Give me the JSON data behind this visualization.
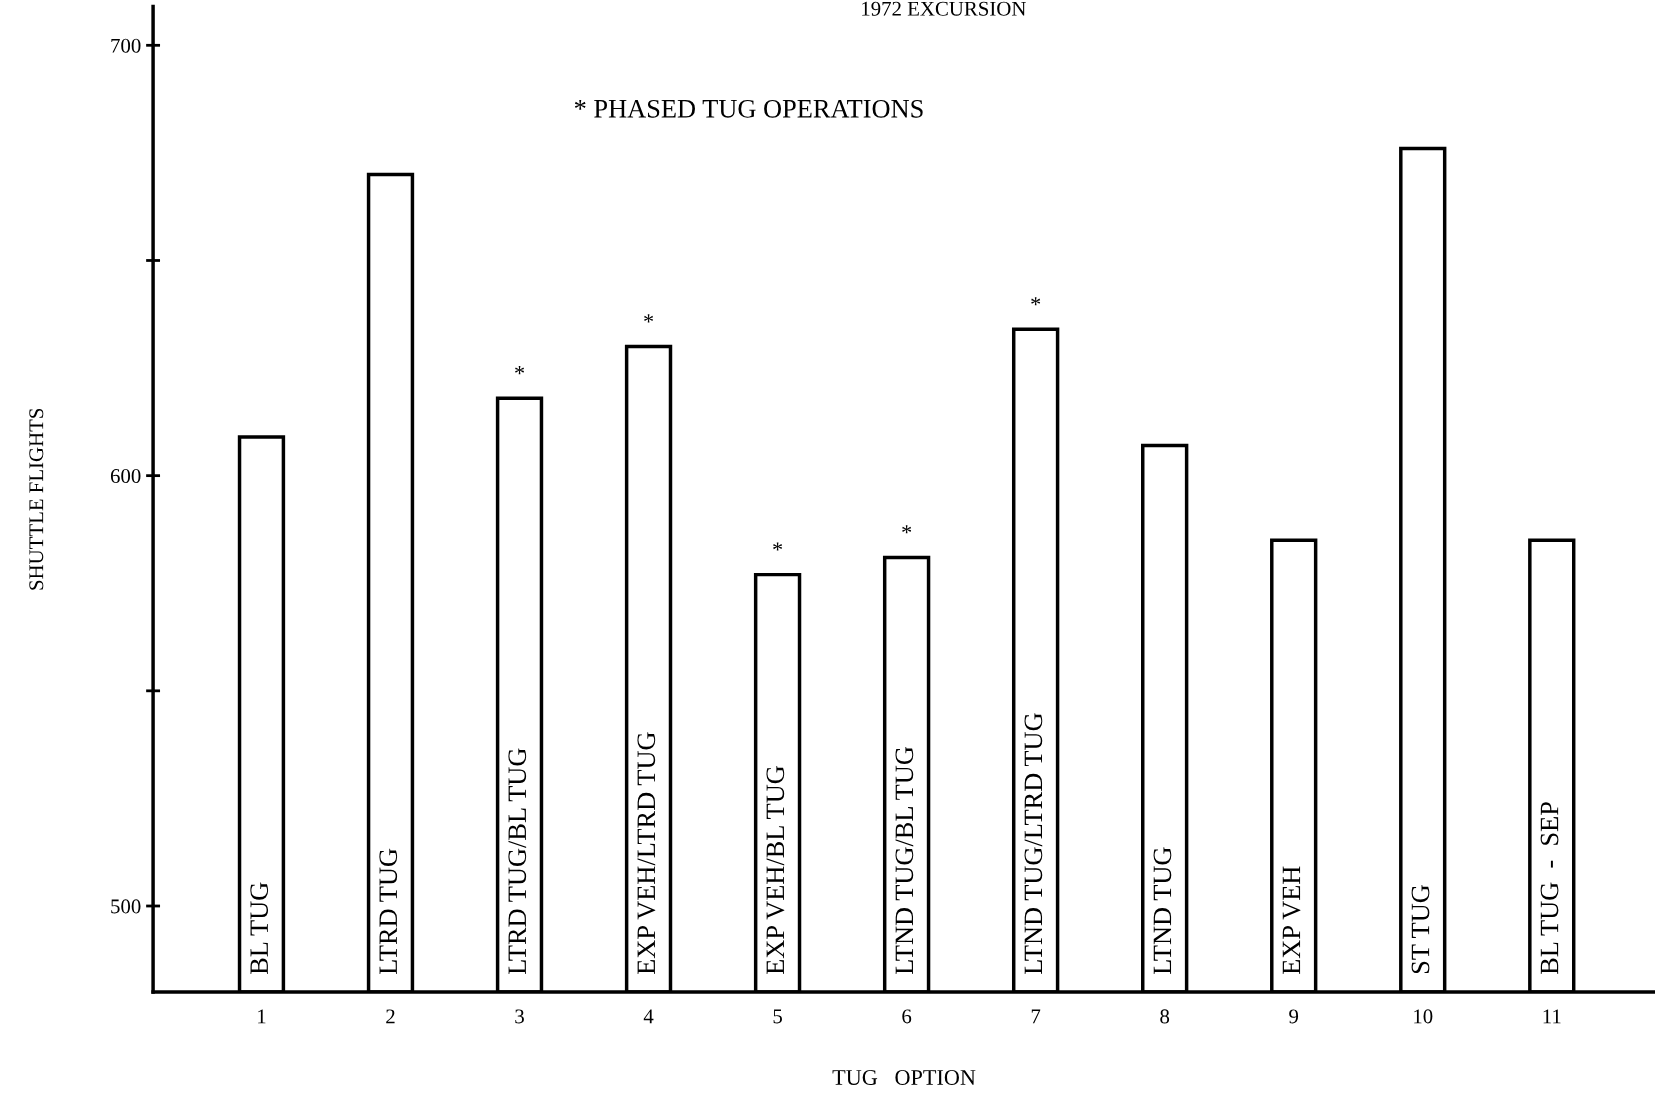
{
  "chart_data": {
    "type": "bar",
    "title": "1972 EXCURSION",
    "xlabel": "TUG   OPTION",
    "ylabel": "SHUTTLE FLIGHTS",
    "categories": [
      "1",
      "2",
      "3",
      "4",
      "5",
      "6",
      "7",
      "8",
      "9",
      "10",
      "11"
    ],
    "values": [
      609,
      670,
      618,
      630,
      577,
      581,
      634,
      607,
      585,
      676,
      585
    ],
    "color": "#ffffff",
    "ylim": [
      480,
      709
    ],
    "yticks": [
      {
        "value": 500,
        "label": "500"
      },
      {
        "value": 550,
        "label": null
      },
      {
        "value": 600,
        "label": "600"
      },
      {
        "value": 650,
        "label": null
      },
      {
        "value": 700,
        "label": "700"
      }
    ],
    "annotations": [
      "* PHASED TUG OPERATIONS",
      "BL TUG",
      "LTRD TUG",
      "LTRD TUG/BL TUG",
      "EXP VEH/LTRD TUG",
      "EXP VEH/BL TUG",
      "LTND TUG/BL TUG",
      "LTND TUG/LTRD TUG",
      "LTND TUG",
      "EXP VEH",
      "ST TUG",
      "BL TUG  -  SEP",
      {
        "text": "*",
        "x": "3",
        "y": 618
      },
      {
        "text": "*",
        "x": "4",
        "y": 630
      },
      {
        "text": "*",
        "x": "5",
        "y": 577
      },
      {
        "text": "*",
        "x": "6",
        "y": 581
      },
      {
        "text": "*",
        "x": "7",
        "y": 634
      }
    ],
    "grid": false,
    "legend": false
  }
}
